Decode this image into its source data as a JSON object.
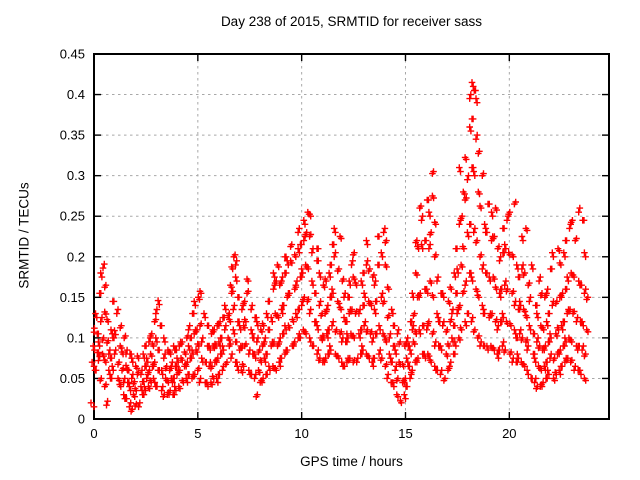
{
  "chart_data": {
    "type": "scatter",
    "title": "Day 238 of 2015, SRMTID for receiver sass",
    "xlabel": "GPS time / hours",
    "ylabel": "SRMTID / TECUs",
    "xlim": [
      0,
      24.8
    ],
    "ylim": [
      0,
      0.45
    ],
    "grid": true,
    "legend": false,
    "marker": {
      "glyph": "+",
      "color": "#ff0000"
    },
    "xticks": [
      {
        "value": 0,
        "label": "0"
      },
      {
        "value": 5,
        "label": "5"
      },
      {
        "value": 10,
        "label": "10"
      },
      {
        "value": 15,
        "label": "15"
      },
      {
        "value": 20,
        "label": "20"
      }
    ],
    "yticks": [
      {
        "value": 0,
        "label": "0"
      },
      {
        "value": 0.05,
        "label": "0.05"
      },
      {
        "value": 0.1,
        "label": "0.1"
      },
      {
        "value": 0.15,
        "label": "0.15"
      },
      {
        "value": 0.2,
        "label": "0.2"
      },
      {
        "value": 0.25,
        "label": "0.25"
      },
      {
        "value": 0.3,
        "label": "0.3"
      },
      {
        "value": 0.35,
        "label": "0.35"
      },
      {
        "value": 0.4,
        "label": "0.4"
      },
      {
        "value": 0.45,
        "label": "0.45"
      }
    ],
    "rows_format": "[gps_hour, srmtid_value, srmtid_value, ...]",
    "rows": [
      [
        0,
        0.02,
        0.07,
        0.09,
        0.112,
        0.13
      ],
      [
        0.15,
        0.06,
        0.082,
        0.105,
        0.155
      ],
      [
        0.3,
        0.072,
        0.09,
        0.12,
        0.175,
        0.186
      ],
      [
        0.45,
        0.05,
        0.08,
        0.1,
        0.132,
        0.165
      ],
      [
        0.6,
        0.04,
        0.07,
        0.094,
        0.12
      ],
      [
        0.75,
        0.022,
        0.06,
        0.085,
        0.11
      ],
      [
        0.9,
        0.05,
        0.075,
        0.1,
        0.145
      ],
      [
        1.05,
        0.06,
        0.08,
        0.104,
        0.13
      ],
      [
        1.2,
        0.05,
        0.07,
        0.09,
        0.115
      ],
      [
        1.35,
        0.04,
        0.06,
        0.08,
        0.1
      ],
      [
        1.5,
        0.03,
        0.05,
        0.066,
        0.085
      ],
      [
        1.65,
        0.025,
        0.045,
        0.06,
        0.08
      ],
      [
        1.8,
        0.015,
        0.035,
        0.05,
        0.07
      ],
      [
        1.95,
        0.012,
        0.03,
        0.046,
        0.065
      ],
      [
        2.1,
        0.016,
        0.035,
        0.055,
        0.075
      ],
      [
        2.25,
        0.02,
        0.04,
        0.06,
        0.08
      ],
      [
        2.4,
        0.03,
        0.046,
        0.065,
        0.09
      ],
      [
        2.55,
        0.035,
        0.05,
        0.07,
        0.095
      ],
      [
        2.7,
        0.04,
        0.06,
        0.08,
        0.105
      ],
      [
        2.85,
        0.045,
        0.065,
        0.09,
        0.12
      ],
      [
        3,
        0.05,
        0.07,
        0.1,
        0.135,
        0.146
      ],
      [
        3.15,
        0.04,
        0.06,
        0.085,
        0.115
      ],
      [
        3.3,
        0.035,
        0.055,
        0.075,
        0.095
      ],
      [
        3.45,
        0.03,
        0.05,
        0.065,
        0.085
      ],
      [
        3.6,
        0.03,
        0.045,
        0.06,
        0.08
      ],
      [
        3.75,
        0.035,
        0.05,
        0.07,
        0.09
      ],
      [
        3.9,
        0.03,
        0.05,
        0.065,
        0.085
      ],
      [
        4.05,
        0.035,
        0.055,
        0.07,
        0.09
      ],
      [
        4.2,
        0.04,
        0.06,
        0.075,
        0.095
      ],
      [
        4.35,
        0.045,
        0.065,
        0.08,
        0.1
      ],
      [
        4.5,
        0.05,
        0.07,
        0.09,
        0.115
      ],
      [
        4.65,
        0.055,
        0.075,
        0.1,
        0.13
      ],
      [
        4.8,
        0.05,
        0.08,
        0.105,
        0.14
      ],
      [
        4.95,
        0.055,
        0.085,
        0.11,
        0.15
      ],
      [
        5.1,
        0.06,
        0.09,
        0.115,
        0.155
      ],
      [
        5.25,
        0.05,
        0.075,
        0.1,
        0.13
      ],
      [
        5.4,
        0.045,
        0.07,
        0.09,
        0.115
      ],
      [
        5.55,
        0.04,
        0.065,
        0.085,
        0.105
      ],
      [
        5.7,
        0.045,
        0.065,
        0.09,
        0.11
      ],
      [
        5.85,
        0.05,
        0.07,
        0.09,
        0.115
      ],
      [
        6,
        0.05,
        0.075,
        0.095,
        0.12
      ],
      [
        6.15,
        0.055,
        0.08,
        0.1,
        0.125
      ],
      [
        6.3,
        0.06,
        0.085,
        0.11,
        0.135
      ],
      [
        6.45,
        0.07,
        0.1,
        0.13,
        0.165
      ],
      [
        6.6,
        0.09,
        0.12,
        0.155,
        0.185,
        0.2
      ],
      [
        6.75,
        0.08,
        0.11,
        0.14,
        0.175,
        0.195
      ],
      [
        6.9,
        0.07,
        0.095,
        0.12,
        0.15
      ],
      [
        7.05,
        0.06,
        0.085,
        0.11,
        0.135
      ],
      [
        7.2,
        0.06,
        0.09,
        0.115,
        0.145
      ],
      [
        7.35,
        0.065,
        0.09,
        0.12,
        0.155,
        0.17
      ],
      [
        7.5,
        0.06,
        0.085,
        0.11,
        0.14
      ],
      [
        7.65,
        0.055,
        0.08,
        0.1,
        0.125
      ],
      [
        7.8,
        0.05,
        0.075,
        0.095,
        0.115
      ],
      [
        7.95,
        0.03,
        0.06,
        0.085,
        0.11
      ],
      [
        8.1,
        0.045,
        0.07,
        0.09,
        0.115
      ],
      [
        8.25,
        0.05,
        0.075,
        0.1,
        0.13
      ],
      [
        8.4,
        0.055,
        0.08,
        0.11,
        0.145
      ],
      [
        8.55,
        0.06,
        0.09,
        0.12,
        0.16,
        0.175
      ],
      [
        8.7,
        0.065,
        0.095,
        0.13,
        0.17,
        0.19
      ],
      [
        8.85,
        0.06,
        0.09,
        0.125,
        0.165
      ],
      [
        9,
        0.07,
        0.1,
        0.135,
        0.175
      ],
      [
        9.15,
        0.075,
        0.105,
        0.14,
        0.18,
        0.2
      ],
      [
        9.3,
        0.08,
        0.11,
        0.15,
        0.19
      ],
      [
        9.45,
        0.085,
        0.115,
        0.155,
        0.195,
        0.215
      ],
      [
        9.6,
        0.09,
        0.12,
        0.16,
        0.2
      ],
      [
        9.75,
        0.095,
        0.13,
        0.17,
        0.21,
        0.235
      ],
      [
        9.9,
        0.1,
        0.135,
        0.175,
        0.215
      ],
      [
        10.05,
        0.1,
        0.14,
        0.18,
        0.22,
        0.24
      ],
      [
        10.2,
        0.11,
        0.15,
        0.19,
        0.23,
        0.255
      ],
      [
        10.35,
        0.105,
        0.145,
        0.185,
        0.225,
        0.25
      ],
      [
        10.5,
        0.1,
        0.135,
        0.17,
        0.21
      ],
      [
        10.65,
        0.09,
        0.12,
        0.155,
        0.195,
        0.21
      ],
      [
        10.8,
        0.08,
        0.11,
        0.14,
        0.175
      ],
      [
        10.95,
        0.075,
        0.1,
        0.13,
        0.165
      ],
      [
        11.1,
        0.07,
        0.1,
        0.13,
        0.17
      ],
      [
        11.25,
        0.075,
        0.105,
        0.14,
        0.18
      ],
      [
        11.4,
        0.08,
        0.11,
        0.15,
        0.19,
        0.215
      ],
      [
        11.55,
        0.085,
        0.115,
        0.155,
        0.2,
        0.23
      ],
      [
        11.7,
        0.08,
        0.11,
        0.145,
        0.185,
        0.225
      ],
      [
        11.85,
        0.075,
        0.105,
        0.135,
        0.17
      ],
      [
        12,
        0.07,
        0.1,
        0.125,
        0.155
      ],
      [
        12.15,
        0.065,
        0.095,
        0.12,
        0.15
      ],
      [
        12.3,
        0.07,
        0.1,
        0.13,
        0.165,
        0.19
      ],
      [
        12.45,
        0.075,
        0.105,
        0.135,
        0.175,
        0.205
      ],
      [
        12.6,
        0.07,
        0.1,
        0.13,
        0.165
      ],
      [
        12.75,
        0.075,
        0.105,
        0.135,
        0.17
      ],
      [
        12.9,
        0.08,
        0.11,
        0.14,
        0.18
      ],
      [
        13.05,
        0.085,
        0.115,
        0.15,
        0.19,
        0.215
      ],
      [
        13.2,
        0.08,
        0.11,
        0.145,
        0.185
      ],
      [
        13.35,
        0.075,
        0.105,
        0.14,
        0.175
      ],
      [
        13.5,
        0.07,
        0.1,
        0.135,
        0.17
      ],
      [
        13.65,
        0.075,
        0.105,
        0.145,
        0.19,
        0.225
      ],
      [
        13.8,
        0.08,
        0.11,
        0.15,
        0.2,
        0.23
      ],
      [
        13.95,
        0.075,
        0.105,
        0.145,
        0.19,
        0.22
      ],
      [
        14.1,
        0.065,
        0.095,
        0.125,
        0.16
      ],
      [
        14.25,
        0.055,
        0.08,
        0.105,
        0.135
      ],
      [
        14.4,
        0.045,
        0.07,
        0.09,
        0.115
      ],
      [
        14.55,
        0.04,
        0.06,
        0.08,
        0.105
      ],
      [
        14.7,
        0.03,
        0.05,
        0.07,
        0.095
      ],
      [
        14.85,
        0.02,
        0.045,
        0.065,
        0.09
      ],
      [
        15,
        0.03,
        0.05,
        0.075,
        0.1
      ],
      [
        15.15,
        0.04,
        0.065,
        0.09,
        0.12
      ],
      [
        15.3,
        0.05,
        0.08,
        0.11,
        0.15
      ],
      [
        15.45,
        0.06,
        0.095,
        0.13,
        0.18,
        0.22
      ],
      [
        15.6,
        0.07,
        0.105,
        0.15,
        0.21,
        0.26
      ],
      [
        15.75,
        0.075,
        0.11,
        0.155,
        0.215,
        0.25
      ],
      [
        15.9,
        0.08,
        0.115,
        0.16,
        0.22,
        0.27
      ],
      [
        16.05,
        0.075,
        0.11,
        0.155,
        0.21,
        0.25
      ],
      [
        16.2,
        0.08,
        0.12,
        0.17,
        0.23,
        0.275,
        0.305
      ],
      [
        16.35,
        0.07,
        0.105,
        0.15,
        0.2,
        0.24
      ],
      [
        16.5,
        0.065,
        0.095,
        0.13,
        0.175
      ],
      [
        16.65,
        0.06,
        0.09,
        0.12,
        0.155
      ],
      [
        16.8,
        0.055,
        0.085,
        0.115,
        0.15
      ],
      [
        16.95,
        0.05,
        0.08,
        0.11,
        0.145
      ],
      [
        17.1,
        0.06,
        0.09,
        0.12,
        0.16
      ],
      [
        17.25,
        0.07,
        0.1,
        0.135,
        0.18
      ],
      [
        17.4,
        0.08,
        0.115,
        0.155,
        0.21
      ],
      [
        17.55,
        0.09,
        0.13,
        0.18,
        0.24,
        0.305
      ],
      [
        17.7,
        0.1,
        0.14,
        0.19,
        0.25,
        0.28
      ],
      [
        17.85,
        0.11,
        0.155,
        0.21,
        0.27,
        0.32
      ],
      [
        18,
        0.12,
        0.17,
        0.23,
        0.3,
        0.36,
        0.4,
        0.415
      ],
      [
        18.15,
        0.13,
        0.18,
        0.24,
        0.31,
        0.37,
        0.405
      ],
      [
        18.3,
        0.12,
        0.17,
        0.23,
        0.3,
        0.345,
        0.39
      ],
      [
        18.45,
        0.11,
        0.16,
        0.22,
        0.28,
        0.33
      ],
      [
        18.6,
        0.1,
        0.15,
        0.2,
        0.26,
        0.3
      ],
      [
        18.75,
        0.095,
        0.14,
        0.19,
        0.24
      ],
      [
        18.9,
        0.09,
        0.13,
        0.18,
        0.23,
        0.265
      ],
      [
        19.05,
        0.085,
        0.125,
        0.17,
        0.22,
        0.25
      ],
      [
        19.2,
        0.09,
        0.13,
        0.175,
        0.225,
        0.26
      ],
      [
        19.35,
        0.085,
        0.12,
        0.16,
        0.21
      ],
      [
        19.5,
        0.08,
        0.115,
        0.155,
        0.2
      ],
      [
        19.65,
        0.085,
        0.12,
        0.16,
        0.205,
        0.235
      ],
      [
        19.8,
        0.09,
        0.125,
        0.165,
        0.21,
        0.245
      ],
      [
        19.95,
        0.085,
        0.12,
        0.16,
        0.205,
        0.255
      ],
      [
        20.1,
        0.08,
        0.115,
        0.155,
        0.2,
        0.265
      ],
      [
        20.25,
        0.075,
        0.11,
        0.145,
        0.19
      ],
      [
        20.4,
        0.07,
        0.1,
        0.135,
        0.175
      ],
      [
        20.55,
        0.075,
        0.105,
        0.14,
        0.185,
        0.22
      ],
      [
        20.7,
        0.07,
        0.1,
        0.135,
        0.18,
        0.235
      ],
      [
        20.85,
        0.065,
        0.095,
        0.125,
        0.165
      ],
      [
        21,
        0.06,
        0.09,
        0.115,
        0.15,
        0.19
      ],
      [
        21.15,
        0.05,
        0.08,
        0.105,
        0.14
      ],
      [
        21.3,
        0.045,
        0.07,
        0.095,
        0.125,
        0.17
      ],
      [
        21.45,
        0.04,
        0.065,
        0.09,
        0.115,
        0.155
      ],
      [
        21.6,
        0.04,
        0.06,
        0.085,
        0.11,
        0.15
      ],
      [
        21.75,
        0.045,
        0.065,
        0.09,
        0.12,
        0.16
      ],
      [
        21.9,
        0.05,
        0.07,
        0.095,
        0.13,
        0.185
      ],
      [
        22.05,
        0.055,
        0.075,
        0.1,
        0.14,
        0.2
      ],
      [
        22.2,
        0.05,
        0.075,
        0.105,
        0.145,
        0.21
      ],
      [
        22.35,
        0.055,
        0.08,
        0.11,
        0.15,
        0.19
      ],
      [
        22.5,
        0.06,
        0.085,
        0.115,
        0.155,
        0.205
      ],
      [
        22.65,
        0.065,
        0.09,
        0.12,
        0.16,
        0.22
      ],
      [
        22.8,
        0.07,
        0.095,
        0.13,
        0.17,
        0.235
      ],
      [
        22.95,
        0.075,
        0.1,
        0.135,
        0.18,
        0.245
      ],
      [
        23.1,
        0.07,
        0.095,
        0.13,
        0.175,
        0.22
      ],
      [
        23.25,
        0.065,
        0.09,
        0.125,
        0.17,
        0.26
      ],
      [
        23.4,
        0.06,
        0.09,
        0.12,
        0.165,
        0.245
      ],
      [
        23.55,
        0.055,
        0.085,
        0.115,
        0.155,
        0.2
      ],
      [
        23.7,
        0.05,
        0.08,
        0.11,
        0.15
      ]
    ]
  }
}
